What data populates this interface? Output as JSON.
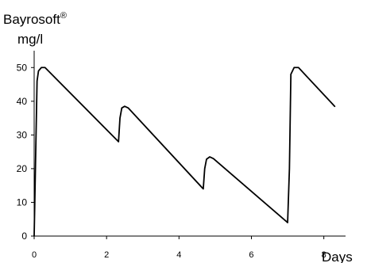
{
  "chart_data": {
    "type": "line",
    "title": "Bayrosoft",
    "title_superscript": "®",
    "ylabel": "mg/l",
    "xlabel": "Days",
    "xlim": [
      0,
      8.6
    ],
    "ylim": [
      0,
      55
    ],
    "x_ticks": [
      0,
      2,
      4,
      6,
      8
    ],
    "x_tick_labels": [
      "0",
      "2",
      "4",
      "6",
      "8"
    ],
    "y_ticks": [
      0,
      10,
      20,
      30,
      40,
      50
    ],
    "y_tick_labels": [
      "0",
      "10",
      "20",
      "30",
      "40",
      "50"
    ],
    "grid": false,
    "series": [
      {
        "color": "#000000",
        "x": [
          0.0,
          0.08,
          0.12,
          0.2,
          0.3,
          2.33,
          2.37,
          2.42,
          2.5,
          2.6,
          4.67,
          4.71,
          4.76,
          4.85,
          4.95,
          7.0,
          7.05,
          7.09,
          7.18,
          7.3,
          8.3
        ],
        "y": [
          0,
          46,
          49,
          50,
          50,
          28,
          35,
          38,
          38.5,
          38,
          14,
          20,
          22.8,
          23.5,
          23,
          4,
          20,
          48,
          50,
          50,
          38.5
        ]
      }
    ]
  }
}
